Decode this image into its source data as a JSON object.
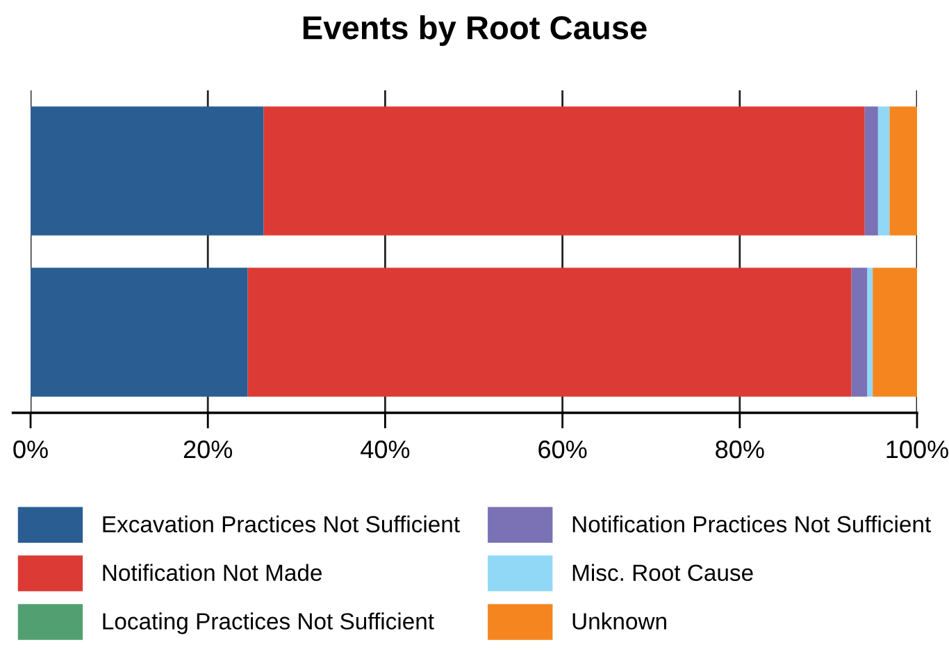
{
  "chart_data": {
    "type": "bar",
    "title": "Events by Root Cause",
    "orientation": "horizontal",
    "stacked": true,
    "categories": [
      null,
      null
    ],
    "series": [
      {
        "name": "Excavation Practices Not Sufficient",
        "color": "#2a5e93",
        "values": [
          26.3,
          24.5
        ]
      },
      {
        "name": "Notification Not Made",
        "color": "#dc3b35",
        "values": [
          67.8,
          68.1
        ]
      },
      {
        "name": "Locating Practices Not Sufficient",
        "color": "#52a072",
        "values": [
          0,
          0
        ]
      },
      {
        "name": "Notification Practices Not Sufficient",
        "color": "#7a72b4",
        "values": [
          1.5,
          1.8
        ]
      },
      {
        "name": "Misc. Root Cause",
        "color": "#91d8f7",
        "values": [
          1.3,
          0.6
        ]
      },
      {
        "name": "Unknown",
        "color": "#f5861f",
        "values": [
          3.1,
          5.0
        ]
      }
    ],
    "xlim": [
      0,
      100
    ],
    "xticks": [
      {
        "value": 0,
        "label": "0%"
      },
      {
        "value": 20,
        "label": "20%"
      },
      {
        "value": 40,
        "label": "40%"
      },
      {
        "value": 60,
        "label": "60%"
      },
      {
        "value": 80,
        "label": "80%"
      },
      {
        "value": 100,
        "label": "100%"
      }
    ],
    "grid": "x",
    "legend": "bottom"
  }
}
